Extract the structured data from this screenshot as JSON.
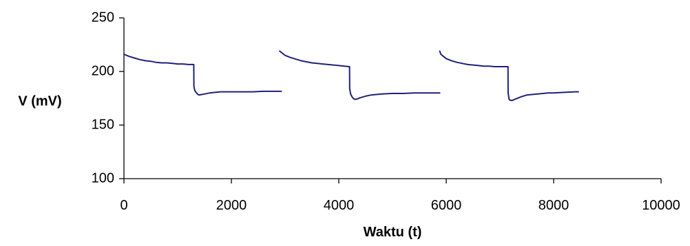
{
  "chart_data": {
    "type": "line",
    "title": "",
    "xlabel": "Waktu (t)",
    "ylabel": "V (mV)",
    "xlim": [
      0,
      10000
    ],
    "ylim": [
      100,
      250
    ],
    "xticks": [
      0,
      2000,
      4000,
      6000,
      8000,
      10000
    ],
    "yticks": [
      100,
      150,
      200,
      250
    ],
    "xtick_labels": [
      "0",
      "2000",
      "4000",
      "6000",
      "8000",
      "10000"
    ],
    "ytick_labels": [
      "100",
      "150",
      "200",
      "250"
    ],
    "grid": false,
    "legend": "none",
    "line_color": "#1f1f7a",
    "series": [
      {
        "segments": [
          {
            "x": [
              0,
              50,
              100,
              200,
              300,
              400,
              500,
              600,
              700,
              800,
              900,
              1000,
              1100,
              1200,
              1300,
              1302,
              1320,
              1350,
              1380,
              1400,
              1450,
              1500,
              1600,
              1700,
              1800,
              2000,
              2200,
              2400,
              2600,
              2800,
              2930
            ],
            "y": [
              216,
              215,
              214,
              212.5,
              211,
              210,
              209.5,
              208.5,
              208,
              208,
              207.5,
              207,
              207,
              206.5,
              206.5,
              186,
              182,
              180,
              178.5,
              178,
              178.5,
              179,
              180,
              180.5,
              181,
              181,
              181,
              181,
              181.5,
              181.5,
              181.5
            ]
          },
          {
            "x": [
              2900,
              2950,
              3000,
              3100,
              3200,
              3300,
              3400,
              3500,
              3600,
              3700,
              3800,
              3900,
              4000,
              4100,
              4200,
              4202,
              4220,
              4250,
              4280,
              4300,
              4350,
              4400,
              4500,
              4600,
              4700,
              4800,
              5000,
              5200,
              5400,
              5600,
              5800,
              5880
            ],
            "y": [
              219,
              217,
              215,
              213,
              211.5,
              210,
              209,
              208,
              207.5,
              207,
              206.5,
              206,
              205.5,
              205,
              204.5,
              184,
              179,
              176,
              174.5,
              174,
              174.5,
              175.5,
              177,
              178,
              178.5,
              179,
              179.5,
              179.5,
              180,
              180,
              180,
              180
            ]
          },
          {
            "x": [
              5880,
              5900,
              5950,
              6000,
              6100,
              6200,
              6300,
              6400,
              6500,
              6600,
              6700,
              6800,
              6900,
              7000,
              7100,
              7150,
              7152,
              7170,
              7200,
              7230,
              7300,
              7400,
              7500,
              7600,
              7700,
              7800,
              7900,
              8000,
              8200,
              8400,
              8460
            ],
            "y": [
              219,
              216,
              214,
              212,
              210,
              208.5,
              207.5,
              206.5,
              206,
              205.5,
              205,
              205,
              204.5,
              204.5,
              204.5,
              204.5,
              180,
              174,
              173,
              173,
              174.5,
              176.5,
              178,
              178.5,
              179,
              179.5,
              180,
              180,
              180.5,
              181,
              181
            ]
          }
        ]
      }
    ]
  }
}
